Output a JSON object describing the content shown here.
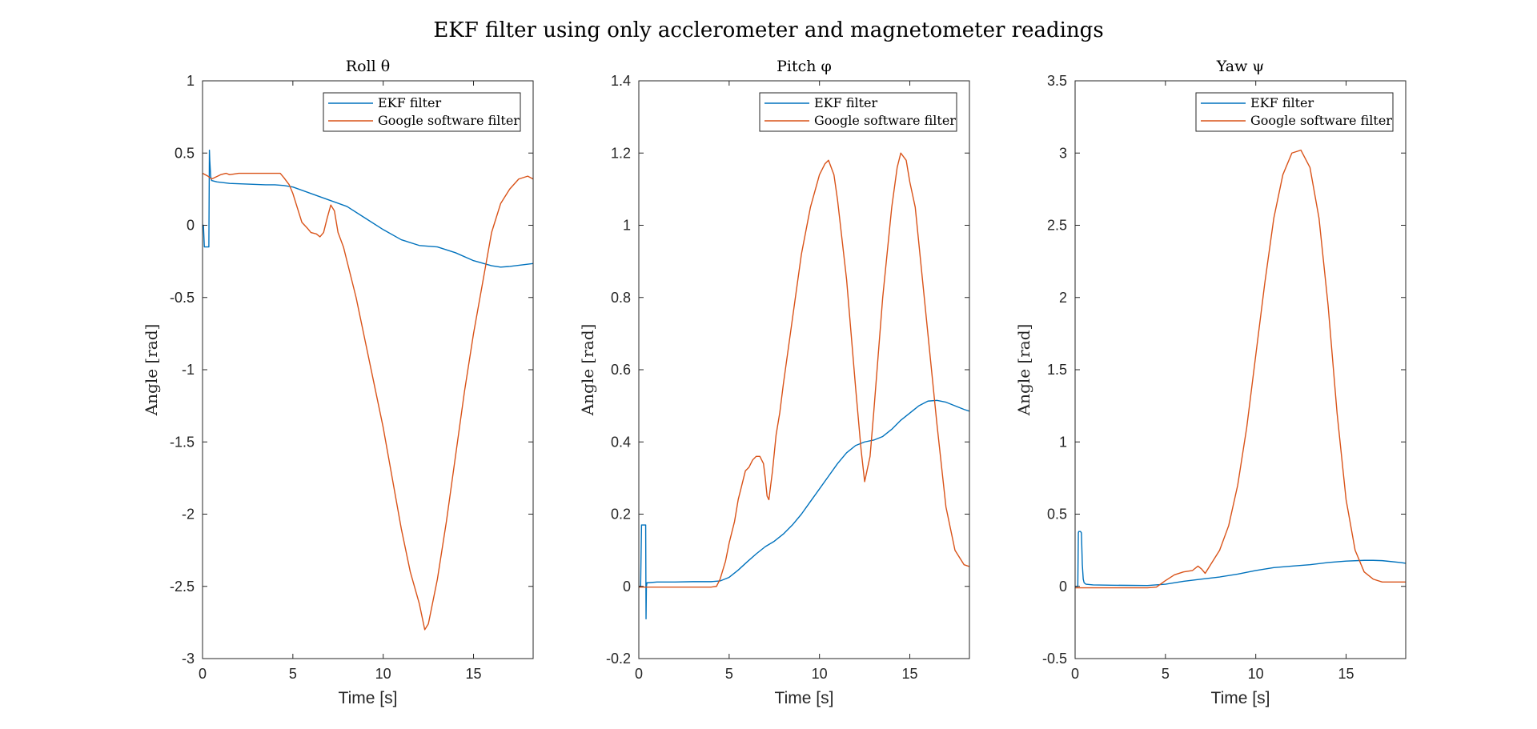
{
  "title": "EKF filter using only acclerometer and magnetometer readings",
  "colors": {
    "ekf": "#0072BD",
    "google": "#D95319",
    "axis": "#262626"
  },
  "chart_data": [
    {
      "type": "line",
      "title": "Roll θ",
      "xlabel": "Time [s]",
      "ylabel": "Angle [rad]",
      "xlim": [
        0,
        18.3
      ],
      "ylim": [
        -3,
        1
      ],
      "xticks": [
        0,
        5,
        10,
        15
      ],
      "yticks": [
        -3,
        -2.5,
        -2,
        -1.5,
        -1,
        -0.5,
        0,
        0.5,
        1
      ],
      "grid": false,
      "legend": "top-right",
      "series": [
        {
          "name": "EKF filter",
          "color": "#0072BD",
          "x": [
            0,
            0.05,
            0.1,
            0.15,
            0.2,
            0.25,
            0.3,
            0.35,
            0.38,
            0.4,
            0.45,
            0.5,
            0.8,
            1.5,
            2.5,
            3.5,
            4.0,
            4.5,
            5.0,
            6.0,
            7.0,
            8.0,
            9.0,
            10.0,
            11.0,
            12.0,
            13.0,
            14.0,
            15.0,
            16.0,
            16.5,
            17.0,
            18.3
          ],
          "y": [
            0,
            0,
            -0.15,
            -0.15,
            -0.15,
            -0.15,
            -0.15,
            -0.15,
            0.52,
            0.45,
            0.34,
            0.31,
            0.3,
            0.29,
            0.285,
            0.28,
            0.28,
            0.275,
            0.265,
            0.22,
            0.175,
            0.13,
            0.05,
            -0.03,
            -0.1,
            -0.14,
            -0.15,
            -0.19,
            -0.245,
            -0.28,
            -0.29,
            -0.285,
            -0.265
          ]
        },
        {
          "name": "Google software filter",
          "color": "#D95319",
          "x": [
            0,
            0.3,
            0.5,
            1.0,
            1.3,
            1.5,
            2.0,
            2.5,
            3.0,
            3.5,
            4.0,
            4.3,
            4.5,
            4.8,
            5.0,
            5.3,
            5.5,
            5.8,
            6.0,
            6.3,
            6.5,
            6.7,
            6.9,
            7.1,
            7.3,
            7.5,
            7.8,
            8.0,
            8.5,
            9.0,
            9.5,
            10.0,
            10.5,
            11.0,
            11.5,
            12.0,
            12.3,
            12.5,
            13.0,
            13.5,
            14.0,
            14.5,
            15.0,
            15.5,
            16.0,
            16.5,
            17.0,
            17.5,
            18.0,
            18.3
          ],
          "y": [
            0.36,
            0.34,
            0.32,
            0.35,
            0.36,
            0.35,
            0.36,
            0.36,
            0.36,
            0.36,
            0.36,
            0.36,
            0.33,
            0.28,
            0.22,
            0.1,
            0.02,
            -0.02,
            -0.05,
            -0.06,
            -0.08,
            -0.05,
            0.05,
            0.14,
            0.1,
            -0.05,
            -0.15,
            -0.25,
            -0.5,
            -0.8,
            -1.1,
            -1.4,
            -1.75,
            -2.1,
            -2.4,
            -2.62,
            -2.8,
            -2.76,
            -2.45,
            -2.05,
            -1.6,
            -1.15,
            -0.75,
            -0.4,
            -0.05,
            0.15,
            0.25,
            0.32,
            0.34,
            0.32
          ]
        }
      ]
    },
    {
      "type": "line",
      "title": "Pitch φ",
      "xlabel": "Time [s]",
      "ylabel": "Angle [rad]",
      "xlim": [
        0,
        18.3
      ],
      "ylim": [
        -0.2,
        1.4
      ],
      "xticks": [
        0,
        5,
        10,
        15
      ],
      "yticks": [
        -0.2,
        0,
        0.2,
        0.4,
        0.6,
        0.8,
        1,
        1.2,
        1.4
      ],
      "grid": false,
      "legend": "top-right",
      "series": [
        {
          "name": "EKF filter",
          "color": "#0072BD",
          "x": [
            0,
            0.1,
            0.15,
            0.2,
            0.25,
            0.3,
            0.35,
            0.38,
            0.4,
            0.42,
            0.45,
            0.5,
            1.0,
            2.0,
            3.0,
            4.0,
            4.5,
            5.0,
            5.5,
            6.0,
            6.5,
            7.0,
            7.5,
            8.0,
            8.5,
            9.0,
            9.5,
            10.0,
            10.5,
            11.0,
            11.5,
            12.0,
            12.5,
            13.0,
            13.5,
            14.0,
            14.5,
            15.0,
            15.5,
            16.0,
            16.5,
            17.0,
            17.5,
            18.0,
            18.3
          ],
          "y": [
            0,
            0,
            0.17,
            0.17,
            0.17,
            0.17,
            0.17,
            0.17,
            -0.09,
            0.0,
            0.01,
            0.01,
            0.012,
            0.012,
            0.013,
            0.013,
            0.015,
            0.025,
            0.045,
            0.068,
            0.09,
            0.11,
            0.125,
            0.145,
            0.17,
            0.2,
            0.235,
            0.27,
            0.305,
            0.34,
            0.37,
            0.39,
            0.4,
            0.405,
            0.415,
            0.435,
            0.46,
            0.48,
            0.5,
            0.513,
            0.515,
            0.51,
            0.5,
            0.49,
            0.485
          ]
        },
        {
          "name": "Google software filter",
          "color": "#D95319",
          "x": [
            0,
            1.0,
            2.0,
            3.0,
            4.0,
            4.3,
            4.5,
            4.8,
            5.0,
            5.3,
            5.5,
            5.7,
            5.9,
            6.1,
            6.3,
            6.5,
            6.7,
            6.9,
            7.0,
            7.1,
            7.2,
            7.4,
            7.6,
            7.8,
            8.0,
            8.5,
            9.0,
            9.5,
            10.0,
            10.3,
            10.5,
            10.8,
            11.0,
            11.5,
            12.0,
            12.3,
            12.5,
            12.8,
            13.0,
            13.5,
            14.0,
            14.3,
            14.5,
            14.8,
            15.0,
            15.3,
            15.5,
            16.0,
            16.5,
            17.0,
            17.5,
            18.0,
            18.3
          ],
          "y": [
            -0.002,
            -0.002,
            -0.002,
            -0.002,
            -0.002,
            0.0,
            0.02,
            0.07,
            0.12,
            0.18,
            0.24,
            0.28,
            0.32,
            0.33,
            0.35,
            0.36,
            0.36,
            0.34,
            0.3,
            0.25,
            0.24,
            0.32,
            0.42,
            0.48,
            0.56,
            0.74,
            0.92,
            1.05,
            1.14,
            1.17,
            1.18,
            1.14,
            1.07,
            0.85,
            0.55,
            0.38,
            0.29,
            0.36,
            0.48,
            0.8,
            1.05,
            1.16,
            1.2,
            1.18,
            1.12,
            1.05,
            0.95,
            0.7,
            0.45,
            0.22,
            0.1,
            0.06,
            0.055
          ]
        }
      ]
    },
    {
      "type": "line",
      "title": "Yaw ψ",
      "xlabel": "Time [s]",
      "ylabel": "Angle [rad]",
      "xlim": [
        0,
        18.3
      ],
      "ylim": [
        -0.5,
        3.5
      ],
      "xticks": [
        0,
        5,
        10,
        15
      ],
      "yticks": [
        -0.5,
        0,
        0.5,
        1,
        1.5,
        2,
        2.5,
        3,
        3.5
      ],
      "grid": false,
      "legend": "top-right",
      "series": [
        {
          "name": "EKF filter",
          "color": "#0072BD",
          "x": [
            0,
            0.15,
            0.18,
            0.2,
            0.3,
            0.35,
            0.4,
            0.45,
            0.5,
            0.6,
            1.0,
            2.0,
            3.0,
            4.0,
            5.0,
            6.0,
            7.0,
            8.0,
            9.0,
            10.0,
            11.0,
            12.0,
            13.0,
            14.0,
            15.0,
            16.0,
            16.5,
            17.0,
            18.0,
            18.3
          ],
          "y": [
            0,
            0,
            0.37,
            0.38,
            0.38,
            0.37,
            0.15,
            0.05,
            0.025,
            0.015,
            0.01,
            0.008,
            0.007,
            0.006,
            0.015,
            0.035,
            0.05,
            0.065,
            0.085,
            0.11,
            0.13,
            0.14,
            0.15,
            0.165,
            0.175,
            0.18,
            0.18,
            0.178,
            0.165,
            0.16
          ]
        },
        {
          "name": "Google software filter",
          "color": "#D95319",
          "x": [
            0,
            1.0,
            2.0,
            3.0,
            4.0,
            4.5,
            5.0,
            5.5,
            6.0,
            6.5,
            6.8,
            7.0,
            7.2,
            7.5,
            8.0,
            8.5,
            9.0,
            9.5,
            10.0,
            10.5,
            11.0,
            11.5,
            12.0,
            12.5,
            13.0,
            13.5,
            14.0,
            14.5,
            15.0,
            15.5,
            16.0,
            16.5,
            17.0,
            18.3
          ],
          "y": [
            -0.01,
            -0.01,
            -0.01,
            -0.01,
            -0.01,
            -0.005,
            0.04,
            0.08,
            0.1,
            0.11,
            0.14,
            0.12,
            0.09,
            0.15,
            0.25,
            0.42,
            0.7,
            1.1,
            1.6,
            2.1,
            2.55,
            2.85,
            3.0,
            3.02,
            2.9,
            2.55,
            1.95,
            1.2,
            0.6,
            0.25,
            0.1,
            0.05,
            0.03,
            0.03
          ]
        }
      ]
    }
  ]
}
